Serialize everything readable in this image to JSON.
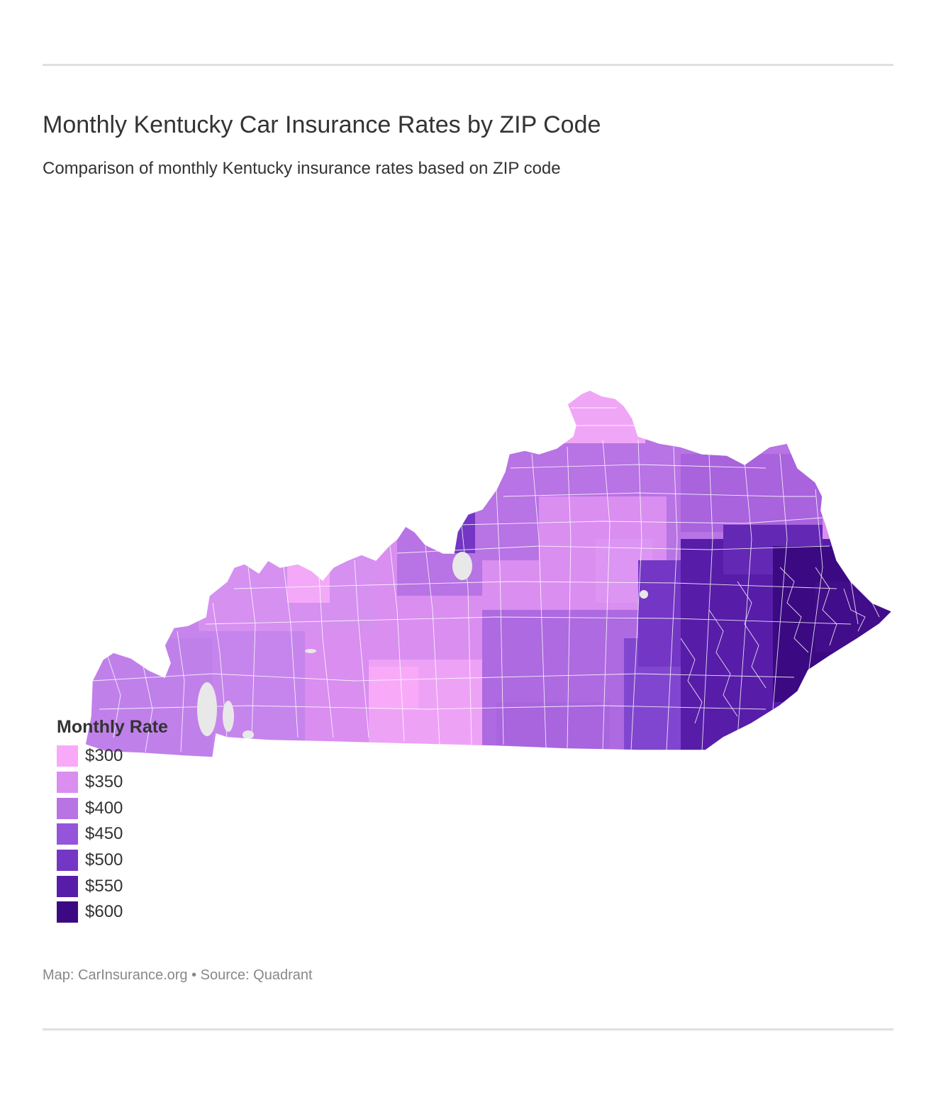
{
  "title": "Monthly Kentucky Car Insurance Rates by ZIP Code",
  "subtitle": "Comparison of monthly Kentucky insurance rates based on ZIP code",
  "legend": {
    "title": "Monthly Rate",
    "items": [
      {
        "label": "$300",
        "color": "#f8aaf8"
      },
      {
        "label": "$350",
        "color": "#d98ef0"
      },
      {
        "label": "$400",
        "color": "#b873e4"
      },
      {
        "label": "$450",
        "color": "#9455da"
      },
      {
        "label": "$500",
        "color": "#7436c4"
      },
      {
        "label": "$550",
        "color": "#571da8"
      },
      {
        "label": "$600",
        "color": "#3b0a82"
      }
    ]
  },
  "footer": "Map: CarInsurance.org • Source: Quadrant",
  "map": {
    "region": "Kentucky",
    "boundary_color": "#ffffff",
    "missing_color": "#e8e8e8",
    "regions": [
      {
        "area": "northern tip (Cincinnati suburbs)",
        "rate": 300
      },
      {
        "area": "north-central",
        "rate": 400
      },
      {
        "area": "Louisville west edge",
        "rate": 500
      },
      {
        "area": "Ohio river west",
        "rate": 350
      },
      {
        "area": "central Bluegrass",
        "rate": 350
      },
      {
        "area": "south-central",
        "rate": 300
      },
      {
        "area": "western Kentucky",
        "rate": 400
      },
      {
        "area": "south-central east",
        "rate": 400
      },
      {
        "area": "southeast (Cumberland)",
        "rate": 500
      },
      {
        "area": "eastern coalfield",
        "rate": 550
      },
      {
        "area": "far east (Pike)",
        "rate": 600
      },
      {
        "area": "northeast",
        "rate": 450
      }
    ]
  }
}
